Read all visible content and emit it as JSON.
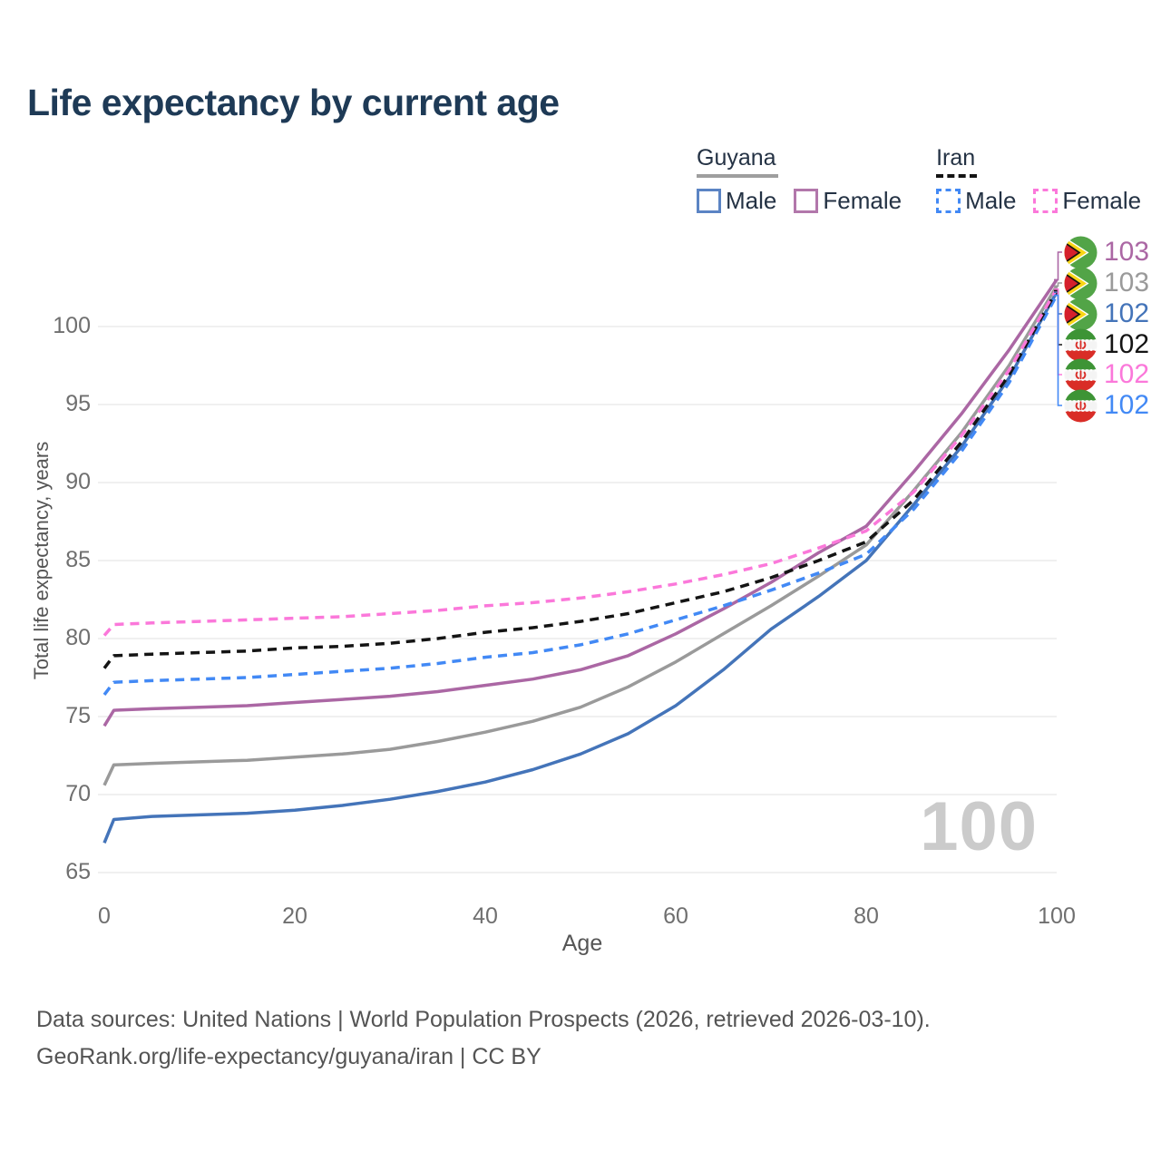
{
  "title": "Life expectancy by current age",
  "axes": {
    "x_label": "Age",
    "y_label": "Total life expectancy, years"
  },
  "legend": {
    "groups": [
      {
        "country": "Guyana",
        "line_style": "solid",
        "line_color": "#9e9e9e",
        "items": [
          {
            "label": "Male",
            "color": "#5b84c4",
            "dashed": false
          },
          {
            "label": "Female",
            "color": "#b277ab",
            "dashed": false
          }
        ]
      },
      {
        "country": "Iran",
        "line_style": "dashed",
        "line_color": "#141414",
        "items": [
          {
            "label": "Male",
            "color": "#4289f5",
            "dashed": true
          },
          {
            "label": "Female",
            "color": "#fb78da",
            "dashed": true
          }
        ]
      }
    ]
  },
  "chart_data": {
    "type": "line",
    "title": "Life expectancy by current age",
    "xlabel": "Age",
    "ylabel": "Total life expectancy, years",
    "xlim": [
      0,
      100
    ],
    "ylim": [
      65,
      104
    ],
    "xticks": [
      0,
      20,
      40,
      60,
      80,
      100
    ],
    "yticks": [
      65,
      70,
      75,
      80,
      85,
      90,
      95,
      100
    ],
    "grid": "horizontal-only",
    "legend_position": "top-right",
    "x": [
      0,
      1,
      5,
      10,
      15,
      20,
      25,
      30,
      35,
      40,
      45,
      50,
      55,
      60,
      65,
      70,
      75,
      80,
      85,
      90,
      95,
      100
    ],
    "series": [
      {
        "name": "Guyana Male",
        "country": "Guyana",
        "sex": "male",
        "color": "#4474b9",
        "dashed": false,
        "values": [
          66.9,
          68.4,
          68.6,
          68.7,
          68.8,
          69.0,
          69.3,
          69.7,
          70.2,
          70.8,
          71.6,
          72.6,
          73.9,
          75.7,
          78.0,
          80.6,
          82.7,
          85.0,
          88.6,
          92.3,
          96.7,
          102.2
        ]
      },
      {
        "name": "Guyana Female",
        "country": "Guyana",
        "sex": "female",
        "color": "#ab67a4",
        "dashed": false,
        "values": [
          74.4,
          75.4,
          75.5,
          75.6,
          75.7,
          75.9,
          76.1,
          76.3,
          76.6,
          77.0,
          77.4,
          78.0,
          78.9,
          80.3,
          81.9,
          83.6,
          85.5,
          87.2,
          90.7,
          94.4,
          98.5,
          103.0
        ]
      },
      {
        "name": "Guyana Both sexes",
        "country": "Guyana",
        "sex": "both",
        "color": "#9a9a9a",
        "dashed": false,
        "values": [
          70.6,
          71.9,
          72.0,
          72.1,
          72.2,
          72.4,
          72.6,
          72.9,
          73.4,
          74.0,
          74.7,
          75.6,
          76.9,
          78.5,
          80.3,
          82.1,
          84.0,
          86.0,
          89.5,
          93.2,
          97.5,
          102.6
        ]
      },
      {
        "name": "Iran Male",
        "country": "Iran",
        "sex": "male",
        "color": "#4289f5",
        "dashed": true,
        "values": [
          76.4,
          77.2,
          77.3,
          77.4,
          77.5,
          77.7,
          77.9,
          78.1,
          78.4,
          78.8,
          79.1,
          79.6,
          80.3,
          81.2,
          82.1,
          83.1,
          84.2,
          85.4,
          88.3,
          92.0,
          96.4,
          102.0
        ]
      },
      {
        "name": "Iran Both sexes",
        "country": "Iran",
        "sex": "both",
        "color": "#141414",
        "dashed": true,
        "values": [
          78.1,
          78.9,
          79.0,
          79.1,
          79.2,
          79.4,
          79.5,
          79.7,
          80.0,
          80.4,
          80.7,
          81.1,
          81.6,
          82.3,
          83.0,
          83.9,
          85.0,
          86.2,
          88.9,
          92.6,
          96.9,
          102.3
        ]
      },
      {
        "name": "Iran Female",
        "country": "Iran",
        "sex": "female",
        "color": "#fb78da",
        "dashed": true,
        "values": [
          80.2,
          80.9,
          81.0,
          81.1,
          81.2,
          81.3,
          81.4,
          81.6,
          81.8,
          82.1,
          82.3,
          82.6,
          83.0,
          83.5,
          84.1,
          84.8,
          85.8,
          86.9,
          89.4,
          93.0,
          97.2,
          102.4
        ]
      }
    ]
  },
  "end_labels": [
    {
      "value": "103",
      "flag": "guyana",
      "color": "#ab67a4",
      "series": "Guyana Female"
    },
    {
      "value": "103",
      "flag": "guyana",
      "color": "#9a9a9a",
      "series": "Guyana Both sexes"
    },
    {
      "value": "102",
      "flag": "guyana",
      "color": "#4474b9",
      "series": "Guyana Male"
    },
    {
      "value": "102",
      "flag": "iran",
      "color": "#141414",
      "series": "Iran Both sexes"
    },
    {
      "value": "102",
      "flag": "iran",
      "color": "#fb78da",
      "series": "Iran Female"
    },
    {
      "value": "102",
      "flag": "iran",
      "color": "#4289f5",
      "series": "Iran Male"
    }
  ],
  "watermark": "100",
  "footer": {
    "line1": "Data sources: United Nations | World Population Prospects (2026, retrieved 2026-03-10).",
    "line2": "GeoRank.org/life-expectancy/guyana/iran | CC BY"
  }
}
